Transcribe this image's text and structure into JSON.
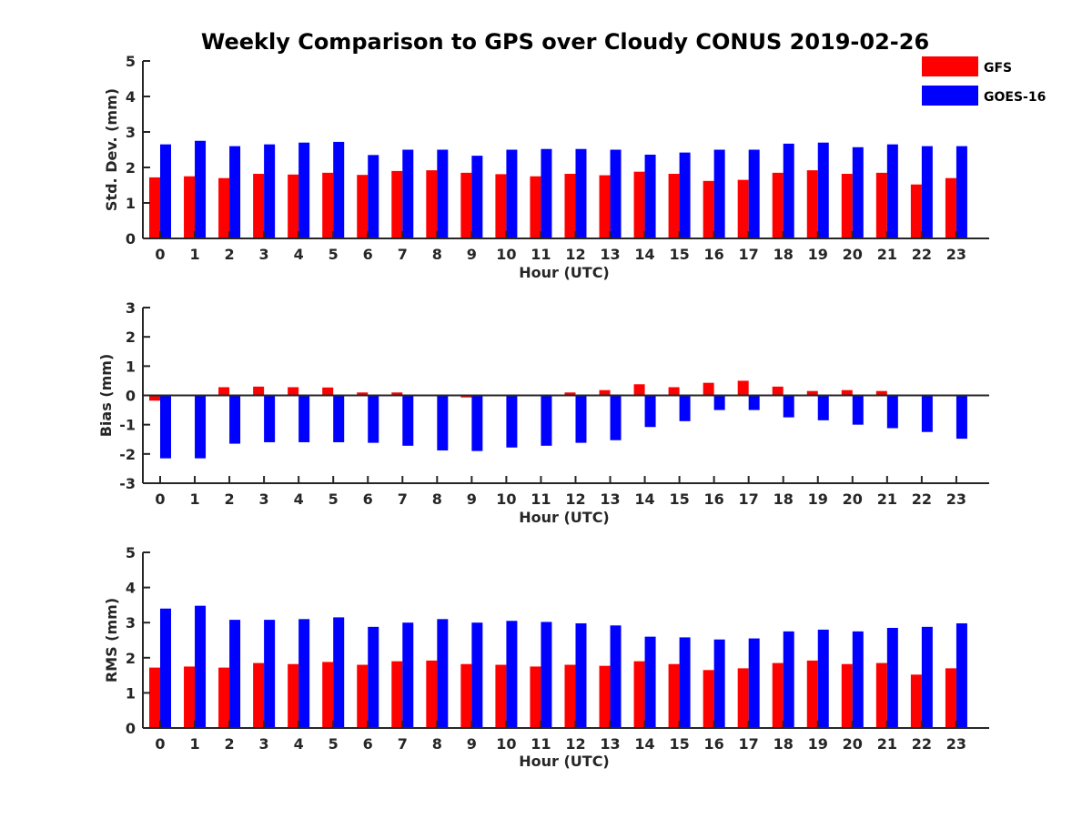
{
  "chart_data": {
    "title": "Weekly Comparison to GPS over Cloudy CONUS 2019-02-26",
    "legend": {
      "placement": "top-right",
      "entries": [
        {
          "name": "GFS",
          "color": "#ff0000"
        },
        {
          "name": "GOES-16",
          "color": "#0000ff"
        }
      ]
    },
    "panels": [
      {
        "type": "bar",
        "xlabel": "Hour (UTC)",
        "ylabel": "Std. Dev. (mm)",
        "ylim": [
          0,
          5
        ],
        "yticks": [
          "0",
          "1",
          "2",
          "3",
          "4",
          "5"
        ],
        "categories": [
          "0",
          "1",
          "2",
          "3",
          "4",
          "5",
          "6",
          "7",
          "8",
          "9",
          "10",
          "11",
          "12",
          "13",
          "14",
          "15",
          "16",
          "17",
          "18",
          "19",
          "20",
          "21",
          "22",
          "23"
        ],
        "series": [
          {
            "name": "GFS",
            "color": "#ff0000",
            "values": [
              1.72,
              1.75,
              1.7,
              1.82,
              1.8,
              1.85,
              1.79,
              1.9,
              1.92,
              1.85,
              1.81,
              1.75,
              1.82,
              1.78,
              1.88,
              1.82,
              1.62,
              1.65,
              1.85,
              1.92,
              1.82,
              1.85,
              1.52,
              1.7
            ]
          },
          {
            "name": "GOES-16",
            "color": "#0000ff",
            "values": [
              2.65,
              2.75,
              2.6,
              2.65,
              2.7,
              2.72,
              2.35,
              2.5,
              2.5,
              2.33,
              2.5,
              2.52,
              2.52,
              2.5,
              2.36,
              2.42,
              2.5,
              2.5,
              2.67,
              2.7,
              2.57,
              2.65,
              2.6,
              2.6
            ]
          }
        ]
      },
      {
        "type": "bar",
        "xlabel": "Hour (UTC)",
        "ylabel": "Bias (mm)",
        "ylim": [
          -3,
          3
        ],
        "yticks": [
          "-3",
          "-2",
          "-1",
          "0",
          "1",
          "2",
          "3"
        ],
        "categories": [
          "0",
          "1",
          "2",
          "3",
          "4",
          "5",
          "6",
          "7",
          "8",
          "9",
          "10",
          "11",
          "12",
          "13",
          "14",
          "15",
          "16",
          "17",
          "18",
          "19",
          "20",
          "21",
          "22",
          "23"
        ],
        "series": [
          {
            "name": "GFS",
            "color": "#ff0000",
            "values": [
              -0.18,
              0.0,
              0.28,
              0.3,
              0.28,
              0.27,
              0.1,
              0.1,
              0.0,
              -0.07,
              0.0,
              -0.03,
              0.1,
              0.18,
              0.38,
              0.28,
              0.43,
              0.5,
              0.3,
              0.15,
              0.18,
              0.15,
              0.0,
              -0.03
            ]
          },
          {
            "name": "GOES-16",
            "color": "#0000ff",
            "values": [
              -2.15,
              -2.15,
              -1.65,
              -1.6,
              -1.6,
              -1.6,
              -1.62,
              -1.72,
              -1.88,
              -1.9,
              -1.78,
              -1.72,
              -1.62,
              -1.53,
              -1.08,
              -0.88,
              -0.5,
              -0.5,
              -0.75,
              -0.85,
              -1.0,
              -1.12,
              -1.25,
              -1.48
            ]
          }
        ]
      },
      {
        "type": "bar",
        "xlabel": "Hour (UTC)",
        "ylabel": "RMS (mm)",
        "ylim": [
          0,
          5
        ],
        "yticks": [
          "0",
          "1",
          "2",
          "3",
          "4",
          "5"
        ],
        "categories": [
          "0",
          "1",
          "2",
          "3",
          "4",
          "5",
          "6",
          "7",
          "8",
          "9",
          "10",
          "11",
          "12",
          "13",
          "14",
          "15",
          "16",
          "17",
          "18",
          "19",
          "20",
          "21",
          "22",
          "23"
        ],
        "series": [
          {
            "name": "GFS",
            "color": "#ff0000",
            "values": [
              1.72,
              1.75,
              1.72,
              1.85,
              1.82,
              1.88,
              1.8,
              1.9,
              1.92,
              1.82,
              1.8,
              1.75,
              1.8,
              1.77,
              1.9,
              1.82,
              1.65,
              1.7,
              1.85,
              1.92,
              1.82,
              1.85,
              1.52,
              1.7
            ]
          },
          {
            "name": "GOES-16",
            "color": "#0000ff",
            "values": [
              3.4,
              3.48,
              3.08,
              3.08,
              3.1,
              3.15,
              2.88,
              3.0,
              3.1,
              3.0,
              3.05,
              3.02,
              2.98,
              2.92,
              2.6,
              2.58,
              2.52,
              2.55,
              2.75,
              2.8,
              2.75,
              2.85,
              2.88,
              2.98
            ]
          }
        ]
      }
    ]
  }
}
